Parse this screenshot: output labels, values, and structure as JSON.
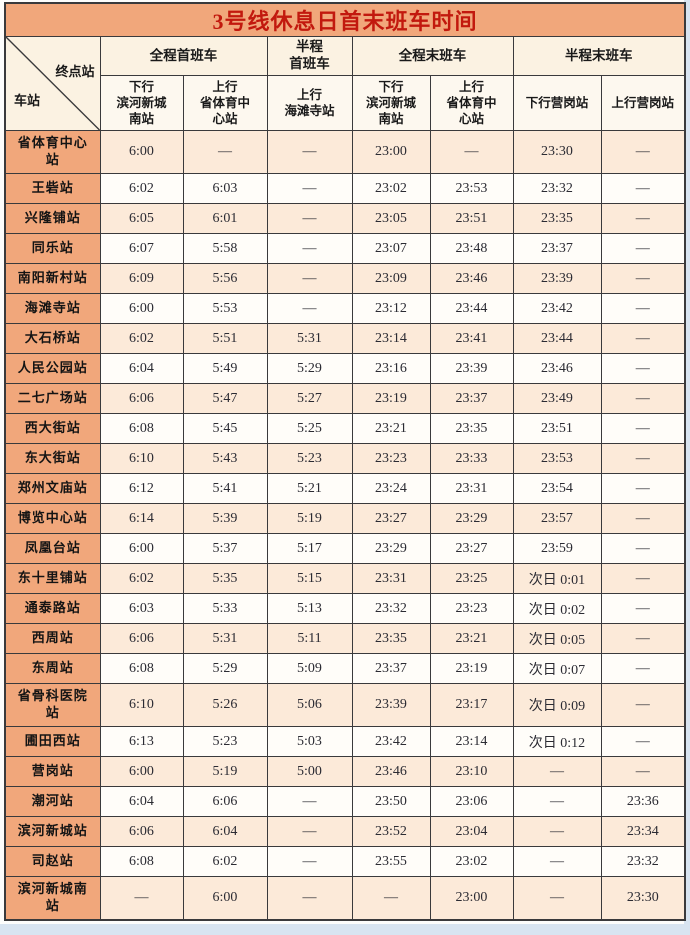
{
  "title": "3号线休息日首末班车时间",
  "corner": {
    "top_right": "终点站",
    "bottom_left": "车站"
  },
  "column_groups": [
    {
      "label": "全程首班车",
      "span": 2
    },
    {
      "label": "半程\n首班车",
      "span": 1
    },
    {
      "label": "全程末班车",
      "span": 2
    },
    {
      "label": "半程末班车",
      "span": 2
    }
  ],
  "sub_headers": [
    "下行\n滨河新城\n南站",
    "上行\n省体育中\n心站",
    "上行\n海滩寺站",
    "下行\n滨河新城\n南站",
    "上行\n省体育中\n心站",
    "下行营岗站",
    "上行营岗站"
  ],
  "dash": "—",
  "rows": [
    {
      "station": "省体育中心\n站",
      "times": [
        "6:00",
        "—",
        "—",
        "23:00",
        "—",
        "23:30",
        "—"
      ]
    },
    {
      "station": "王砦站",
      "times": [
        "6:02",
        "6:03",
        "—",
        "23:02",
        "23:53",
        "23:32",
        "—"
      ]
    },
    {
      "station": "兴隆铺站",
      "times": [
        "6:05",
        "6:01",
        "—",
        "23:05",
        "23:51",
        "23:35",
        "—"
      ]
    },
    {
      "station": "同乐站",
      "times": [
        "6:07",
        "5:58",
        "—",
        "23:07",
        "23:48",
        "23:37",
        "—"
      ]
    },
    {
      "station": "南阳新村站",
      "times": [
        "6:09",
        "5:56",
        "—",
        "23:09",
        "23:46",
        "23:39",
        "—"
      ]
    },
    {
      "station": "海滩寺站",
      "times": [
        "6:00",
        "5:53",
        "—",
        "23:12",
        "23:44",
        "23:42",
        "—"
      ]
    },
    {
      "station": "大石桥站",
      "times": [
        "6:02",
        "5:51",
        "5:31",
        "23:14",
        "23:41",
        "23:44",
        "—"
      ]
    },
    {
      "station": "人民公园站",
      "times": [
        "6:04",
        "5:49",
        "5:29",
        "23:16",
        "23:39",
        "23:46",
        "—"
      ]
    },
    {
      "station": "二七广场站",
      "times": [
        "6:06",
        "5:47",
        "5:27",
        "23:19",
        "23:37",
        "23:49",
        "—"
      ]
    },
    {
      "station": "西大街站",
      "times": [
        "6:08",
        "5:45",
        "5:25",
        "23:21",
        "23:35",
        "23:51",
        "—"
      ]
    },
    {
      "station": "东大街站",
      "times": [
        "6:10",
        "5:43",
        "5:23",
        "23:23",
        "23:33",
        "23:53",
        "—"
      ]
    },
    {
      "station": "郑州文庙站",
      "times": [
        "6:12",
        "5:41",
        "5:21",
        "23:24",
        "23:31",
        "23:54",
        "—"
      ]
    },
    {
      "station": "博览中心站",
      "times": [
        "6:14",
        "5:39",
        "5:19",
        "23:27",
        "23:29",
        "23:57",
        "—"
      ]
    },
    {
      "station": "凤凰台站",
      "times": [
        "6:00",
        "5:37",
        "5:17",
        "23:29",
        "23:27",
        "23:59",
        "—"
      ]
    },
    {
      "station": "东十里铺站",
      "times": [
        "6:02",
        "5:35",
        "5:15",
        "23:31",
        "23:25",
        "次日 0:01",
        "—"
      ]
    },
    {
      "station": "通泰路站",
      "times": [
        "6:03",
        "5:33",
        "5:13",
        "23:32",
        "23:23",
        "次日 0:02",
        "—"
      ]
    },
    {
      "station": "西周站",
      "times": [
        "6:06",
        "5:31",
        "5:11",
        "23:35",
        "23:21",
        "次日 0:05",
        "—"
      ]
    },
    {
      "station": "东周站",
      "times": [
        "6:08",
        "5:29",
        "5:09",
        "23:37",
        "23:19",
        "次日 0:07",
        "—"
      ]
    },
    {
      "station": "省骨科医院\n站",
      "times": [
        "6:10",
        "5:26",
        "5:06",
        "23:39",
        "23:17",
        "次日 0:09",
        "—"
      ]
    },
    {
      "station": "圃田西站",
      "times": [
        "6:13",
        "5:23",
        "5:03",
        "23:42",
        "23:14",
        "次日 0:12",
        "—"
      ]
    },
    {
      "station": "营岗站",
      "times": [
        "6:00",
        "5:19",
        "5:00",
        "23:46",
        "23:10",
        "—",
        "—"
      ]
    },
    {
      "station": "潮河站",
      "times": [
        "6:04",
        "6:06",
        "—",
        "23:50",
        "23:06",
        "—",
        "23:36"
      ]
    },
    {
      "station": "滨河新城站",
      "times": [
        "6:06",
        "6:04",
        "—",
        "23:52",
        "23:04",
        "—",
        "23:34"
      ]
    },
    {
      "station": "司赵站",
      "times": [
        "6:08",
        "6:02",
        "—",
        "23:55",
        "23:02",
        "—",
        "23:32"
      ]
    },
    {
      "station": "滨河新城南\n站",
      "times": [
        "—",
        "6:00",
        "—",
        "—",
        "23:00",
        "—",
        "23:30"
      ]
    }
  ],
  "colors": {
    "orange": "#f1a77b",
    "title_red": "#c2190e",
    "header_cream": "#fbf2e2",
    "subheader_cream": "#fdf8ef",
    "row_peach": "#fcead9",
    "row_white": "#fffdf9",
    "border": "#3a3a3c",
    "page_margin_blue": "#d8e4f1"
  }
}
